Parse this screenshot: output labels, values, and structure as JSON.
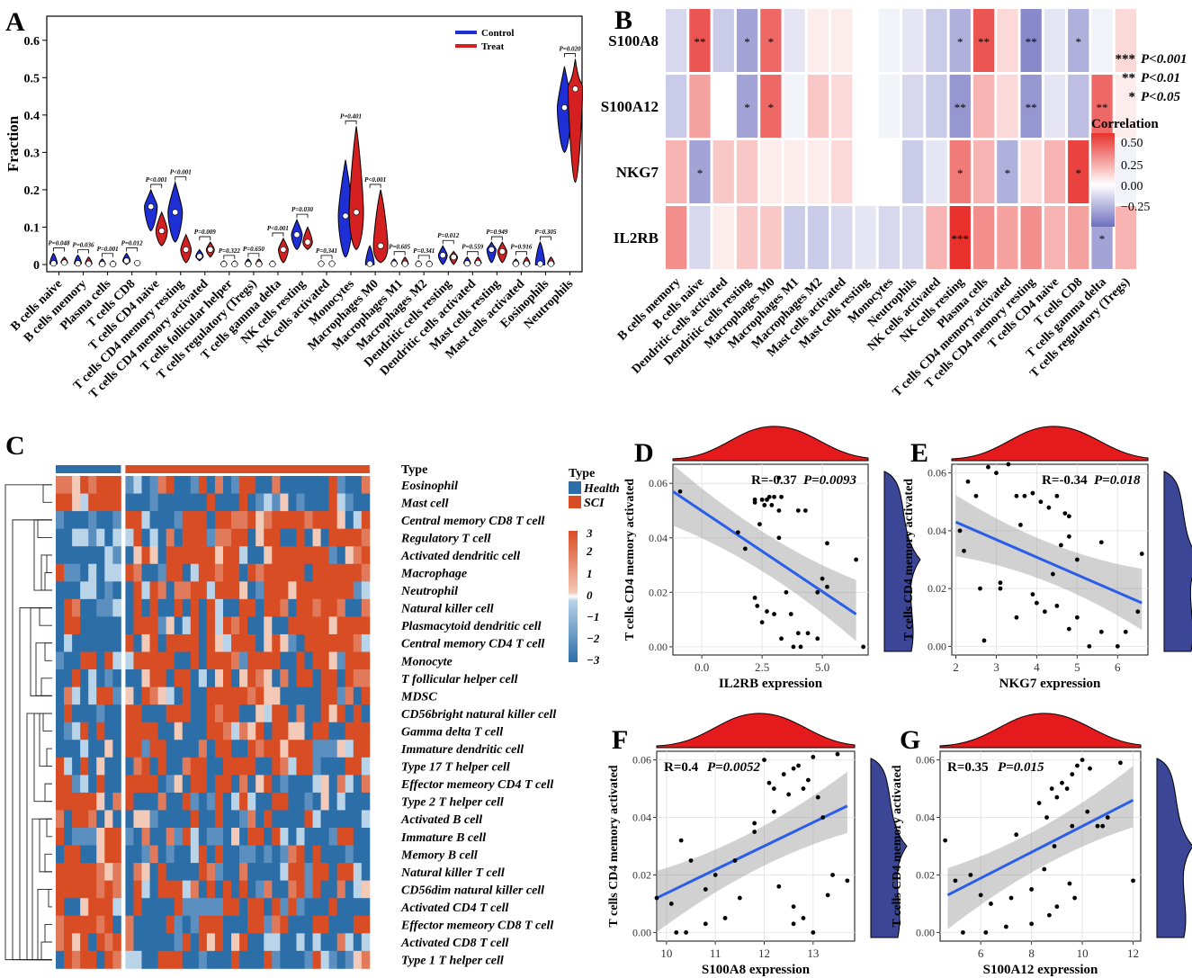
{
  "panels": {
    "A": "A",
    "B": "B",
    "C": "C",
    "D": "D",
    "E": "E",
    "F": "F",
    "G": "G"
  },
  "colors": {
    "control": "#1f2fd6",
    "treat": "#d42020",
    "heat_low": "#6e6fc0",
    "heat_high": "#e8302c",
    "type_health": "#2c6ea8",
    "type_sci": "#d94d25",
    "line": "#2a5ee8",
    "density_top": "#e41a1c",
    "density_side": "#3b4796"
  },
  "chart_data": [
    {
      "id": "A",
      "type": "violin",
      "ylabel": "Fraction",
      "ylim": [
        0,
        0.65
      ],
      "yticks": [
        0.0,
        0.1,
        0.2,
        0.3,
        0.4,
        0.5,
        0.6
      ],
      "legend": [
        "Control",
        "Treat"
      ],
      "categories": [
        "B cells naive",
        "B cells memory",
        "Plasma cells",
        "T cells CD8",
        "T cells CD4 naive",
        "T cells CD4 memory resting",
        "T cells CD4 memory activated",
        "T cells follicular helper",
        "T cells regulatory (Tregs)",
        "T cells gamma delta",
        "NK cells resting",
        "NK cells activated",
        "Monocytes",
        "Macrophages M0",
        "Macrophages M1",
        "Macrophages M2",
        "Dendritic cells resting",
        "Dendritic cells activated",
        "Mast cells resting",
        "Mast cells activated",
        "Eosinophils",
        "Neutrophils"
      ],
      "pvalues": [
        "P=0.048",
        "P=0.036",
        "P=0.001",
        "P=0.012",
        "P<0.001",
        "P<0.001",
        "P=0.009",
        "P=0.322",
        "P=0.650",
        "P<0.001",
        "P=0.030",
        "P=0.341",
        "P=0.401",
        "P<0.001",
        "P=0.605",
        "P=0.341",
        "P=0.012",
        "P=0.559",
        "P=0.949",
        "P=0.916",
        "P=0.305",
        "P=0.020"
      ],
      "control": [
        {
          "min": 0,
          "med": 0.003,
          "max": 0.03
        },
        {
          "min": 0,
          "med": 0.003,
          "max": 0.025
        },
        {
          "min": 0,
          "med": 0.001,
          "max": 0.015
        },
        {
          "min": 0,
          "med": 0.01,
          "max": 0.03
        },
        {
          "min": 0.09,
          "med": 0.155,
          "max": 0.2
        },
        {
          "min": 0.06,
          "med": 0.14,
          "max": 0.22
        },
        {
          "min": 0.01,
          "med": 0.022,
          "max": 0.04
        },
        {
          "min": 0,
          "med": 0.001,
          "max": 0.01
        },
        {
          "min": 0,
          "med": 0.001,
          "max": 0.015
        },
        {
          "min": 0,
          "med": 0.001,
          "max": 0.01
        },
        {
          "min": 0.04,
          "med": 0.08,
          "max": 0.12
        },
        {
          "min": 0,
          "med": 0.002,
          "max": 0.01
        },
        {
          "min": 0.02,
          "med": 0.13,
          "max": 0.28
        },
        {
          "min": 0,
          "med": 0.002,
          "max": 0.05
        },
        {
          "min": 0,
          "med": 0.002,
          "max": 0.015
        },
        {
          "min": 0,
          "med": 0.001,
          "max": 0.01
        },
        {
          "min": 0,
          "med": 0.025,
          "max": 0.05
        },
        {
          "min": 0,
          "med": 0.003,
          "max": 0.02
        },
        {
          "min": 0.005,
          "med": 0.04,
          "max": 0.06
        },
        {
          "min": 0,
          "med": 0.002,
          "max": 0.015
        },
        {
          "min": 0,
          "med": 0.002,
          "max": 0.06
        },
        {
          "min": 0.3,
          "med": 0.42,
          "max": 0.53
        }
      ],
      "treat": [
        {
          "min": 0,
          "med": 0.005,
          "max": 0.02
        },
        {
          "min": 0,
          "med": 0.002,
          "max": 0.02
        },
        {
          "min": 0,
          "med": 0.001,
          "max": 0.01
        },
        {
          "min": 0,
          "med": 0.004,
          "max": 0.01
        },
        {
          "min": 0.05,
          "med": 0.09,
          "max": 0.14
        },
        {
          "min": 0.005,
          "med": 0.04,
          "max": 0.08
        },
        {
          "min": 0.02,
          "med": 0.04,
          "max": 0.06
        },
        {
          "min": 0,
          "med": 0.001,
          "max": 0.01
        },
        {
          "min": 0,
          "med": 0.001,
          "max": 0.015
        },
        {
          "min": 0.005,
          "med": 0.04,
          "max": 0.07
        },
        {
          "min": 0.04,
          "med": 0.06,
          "max": 0.1
        },
        {
          "min": 0,
          "med": 0.002,
          "max": 0.01
        },
        {
          "min": 0.04,
          "med": 0.14,
          "max": 0.37
        },
        {
          "min": 0.005,
          "med": 0.05,
          "max": 0.2
        },
        {
          "min": 0,
          "med": 0.002,
          "max": 0.02
        },
        {
          "min": 0,
          "med": 0.001,
          "max": 0.01
        },
        {
          "min": 0,
          "med": 0.02,
          "max": 0.035
        },
        {
          "min": 0,
          "med": 0.004,
          "max": 0.02
        },
        {
          "min": 0.005,
          "med": 0.035,
          "max": 0.06
        },
        {
          "min": 0,
          "med": 0.002,
          "max": 0.02
        },
        {
          "min": 0,
          "med": 0.002,
          "max": 0.02
        },
        {
          "min": 0.22,
          "med": 0.47,
          "max": 0.55
        }
      ]
    },
    {
      "id": "B",
      "type": "heatmap",
      "rows": [
        "S100A8",
        "S100A12",
        "NKG7",
        "IL2RB"
      ],
      "columns": [
        "B cells memory",
        "B cells naive",
        "Dendritic cells activated",
        "Dendritic cells resting",
        "Macrophages M0",
        "Macrophages M1",
        "Macrophages M2",
        "Mast cells activated",
        "Mast cells resting",
        "Monocytes",
        "Neutrophils",
        "NK cells activated",
        "NK cells resting",
        "Plasma cells",
        "T cells CD4 memory activated",
        "T cells CD4 memory resting",
        "T cells CD4 naive",
        "T cells CD8",
        "T cells gamma delta",
        "T cells regulatory (Tregs)"
      ],
      "values": [
        [
          -0.15,
          0.45,
          -0.2,
          -0.35,
          0.4,
          -0.1,
          0.05,
          0.05,
          0,
          -0.05,
          -0.1,
          -0.2,
          -0.3,
          0.45,
          0.1,
          -0.45,
          -0.1,
          -0.3,
          -0.05,
          0.1
        ],
        [
          -0.2,
          0.25,
          0,
          -0.35,
          0.4,
          -0.05,
          0.15,
          0.1,
          0,
          -0.05,
          -0.15,
          -0.2,
          -0.4,
          0.2,
          0.1,
          -0.4,
          -0.1,
          -0.25,
          0.4,
          0.05
        ],
        [
          0.2,
          -0.35,
          0.15,
          0.15,
          0.05,
          0.05,
          0.05,
          0.1,
          0,
          0,
          -0.2,
          -0.1,
          0.35,
          0.2,
          -0.3,
          0.1,
          0.2,
          0.5,
          0.1,
          -0.05
        ],
        [
          0.3,
          -0.15,
          0.05,
          0.15,
          0.15,
          -0.2,
          -0.2,
          -0.15,
          -0.1,
          -0.15,
          -0.15,
          0.2,
          0.6,
          0.3,
          0.25,
          0.3,
          0.2,
          0.25,
          -0.35,
          0.2
        ]
      ],
      "stars": [
        [
          "",
          "**",
          "",
          "*",
          "*",
          "",
          "",
          "",
          "",
          "",
          "",
          "",
          "*",
          "**",
          "",
          "**",
          "",
          "*",
          "",
          ""
        ],
        [
          "",
          "",
          "",
          "*",
          "*",
          "",
          "",
          "",
          "",
          "",
          "",
          "",
          "**",
          "",
          "",
          "**",
          "",
          "",
          "**",
          ""
        ],
        [
          "",
          "*",
          "",
          "",
          "",
          "",
          "",
          "",
          "",
          "",
          "",
          "",
          "*",
          "",
          "*",
          "",
          "",
          "*",
          "",
          ""
        ],
        [
          "",
          "",
          "",
          "",
          "",
          "",
          "",
          "",
          "",
          "",
          "",
          "",
          "***",
          "",
          "",
          "",
          "",
          "",
          "*",
          ""
        ]
      ],
      "legend_title": "Correlation",
      "legend_ticks": [
        "0.50",
        "0.25",
        "0.00",
        "−0.25"
      ],
      "sig_key": [
        {
          "stars": "***",
          "text": "P<0.001"
        },
        {
          "stars": "**",
          "text": "P<0.01"
        },
        {
          "stars": "*",
          "text": "P<0.05"
        }
      ]
    },
    {
      "id": "C",
      "type": "heatmap",
      "type_header": "Type",
      "legend_groups": [
        "Health",
        "SCI"
      ],
      "health_samples": 8,
      "sci_samples": 30,
      "scale_ticks": [
        "3",
        "2",
        "1",
        "0",
        "−1",
        "−2",
        "−3"
      ],
      "rows": [
        "Eosinophil",
        "Mast cell",
        "Central memory CD8 T cell",
        "Regulatory T cell",
        "Activated dendritic cell",
        "Macrophage",
        "Neutrophil",
        "Natural killer cell",
        "Plasmacytoid dendritic cell",
        "Central memory CD4 T cell",
        "Monocyte",
        "T follicular helper cell",
        "MDSC",
        "CD56bright natural killer cell",
        "Gamma delta T cell",
        "Immature dendritic cell",
        "Type 17 T helper cell",
        "Effector memeory CD4 T cell",
        "Type 2 T helper cell",
        "Activated B cell",
        "Immature  B cell",
        "Memory B cell",
        "Natural killer T cell",
        "CD56dim natural killer cell",
        "Activated CD4 T cell",
        "Effector memeory CD8 T cell",
        "Activated CD8 T cell",
        "Type 1 T helper cell"
      ]
    },
    {
      "id": "D",
      "type": "scatter",
      "xlabel": "IL2RB expression",
      "ylabel": "T cells CD4 memory activated",
      "stat": "R=-0.37",
      "pval": "P=0.0093",
      "xlim": [
        -1.2,
        6.9
      ],
      "ylim": [
        -0.003,
        0.067
      ],
      "xticks": [
        0.0,
        2.5,
        5.0
      ],
      "xtick_labels": [
        "0.0",
        "2.5",
        "5.0"
      ],
      "yticks": [
        0,
        0.02,
        0.04,
        0.06
      ],
      "ytick_labels": [
        "0.00",
        "0.02",
        "0.04",
        "0.06"
      ],
      "x": [
        -0.9,
        1.5,
        1.8,
        2.2,
        2.2,
        2.5,
        2.6,
        2.7,
        2.8,
        2.9,
        3.0,
        3.2,
        3.3,
        4.0,
        4.3,
        3.2,
        3.5,
        5.0,
        5.2,
        4.8,
        3.0,
        2.7,
        2.2,
        2.3,
        2.5,
        3.7,
        4.0,
        4.4,
        4.8,
        3.3,
        3.8,
        4.1,
        6.4,
        6.7,
        2.4,
        3.2,
        5.2
      ],
      "y": [
        0.057,
        0.042,
        0.036,
        0.054,
        0.053,
        0.054,
        0.052,
        0.054,
        0.055,
        0.052,
        0.055,
        0.05,
        0.055,
        0.05,
        0.05,
        0.04,
        0.02,
        0.025,
        0.022,
        0.02,
        0.012,
        0.013,
        0.018,
        0.015,
        0.009,
        0.012,
        0.005,
        0.005,
        0.003,
        0.003,
        0,
        0,
        0.032,
        0,
        0.045,
        0.062,
        0.038
      ],
      "fit": [
        [
          -1.2,
          0.057
        ],
        [
          6.4,
          0.012
        ]
      ]
    },
    {
      "id": "E",
      "type": "scatter",
      "xlabel": "NKG7 expression",
      "ylabel": "T cells CD4 memory activated",
      "stat": "R=-0.34",
      "pval": "P=0.018",
      "xlim": [
        1.9,
        6.75
      ],
      "ylim": [
        -0.003,
        0.063
      ],
      "xticks": [
        2,
        3,
        4,
        5,
        6
      ],
      "xtick_labels": [
        "2",
        "3",
        "4",
        "5",
        "6"
      ],
      "yticks": [
        0,
        0.02,
        0.04,
        0.06
      ],
      "ytick_labels": [
        "0.00",
        "0.02",
        "0.04",
        "0.06"
      ],
      "x": [
        2.1,
        2.3,
        2.5,
        2.8,
        3.0,
        3.3,
        3.5,
        3.7,
        3.9,
        4.1,
        4.3,
        4.5,
        4.7,
        4.8,
        5.0,
        2.2,
        2.6,
        3.1,
        3.9,
        4.0,
        4.2,
        4.5,
        4.8,
        5.0,
        5.3,
        5.6,
        6.0,
        6.2,
        6.5,
        6.6,
        2.7,
        3.5,
        4.4,
        4.6,
        5.6,
        3.6,
        4.8,
        3.1
      ],
      "y": [
        0.04,
        0.057,
        0.052,
        0.062,
        0.06,
        0.063,
        0.052,
        0.052,
        0.053,
        0.05,
        0.048,
        0.052,
        0.046,
        0.038,
        0.03,
        0.033,
        0.02,
        0.022,
        0.018,
        0.015,
        0.012,
        0.014,
        0.006,
        0.01,
        0,
        0.005,
        0,
        0.005,
        0.012,
        0.032,
        0.002,
        0.01,
        0.025,
        0.035,
        0.036,
        0.042,
        0.045,
        0.02
      ],
      "fit": [
        [
          2.0,
          0.043
        ],
        [
          6.6,
          0.015
        ]
      ]
    },
    {
      "id": "F",
      "type": "scatter",
      "xlabel": "S100A8 expression",
      "ylabel": "T cells CD4 memory activated",
      "stat": "R=0.4",
      "pval": "P=0.0052",
      "xlim": [
        9.8,
        13.85
      ],
      "ylim": [
        -0.003,
        0.063
      ],
      "xticks": [
        10,
        11,
        12,
        13
      ],
      "xtick_labels": [
        "10",
        "11",
        "12",
        "13"
      ],
      "yticks": [
        0,
        0.02,
        0.04,
        0.06
      ],
      "ytick_labels": [
        "0.00",
        "0.02",
        "0.04",
        "0.06"
      ],
      "x": [
        9.8,
        10.1,
        10.3,
        10.5,
        10.8,
        11.0,
        11.2,
        11.5,
        11.8,
        12.0,
        12.1,
        12.2,
        12.4,
        12.5,
        12.6,
        12.7,
        12.8,
        12.9,
        13.0,
        13.1,
        13.2,
        13.5,
        13.7,
        10.4,
        11.4,
        12.3,
        12.6,
        12.8,
        13.3,
        10.2,
        10.8,
        11.8,
        12.2,
        12.6,
        13.0,
        13.4
      ],
      "y": [
        0.012,
        0.01,
        0.032,
        0.025,
        0.015,
        0.02,
        0.005,
        0.012,
        0.035,
        0.06,
        0.052,
        0.05,
        0.055,
        0.048,
        0.057,
        0.058,
        0.05,
        0.053,
        0.061,
        0.047,
        0.04,
        0.062,
        0.018,
        0.0,
        0.025,
        0.016,
        0.009,
        0.005,
        0.013,
        0.0,
        0.003,
        0.038,
        0.042,
        0.003,
        0.0,
        0.02
      ],
      "fit": [
        [
          9.8,
          0.012
        ],
        [
          13.7,
          0.044
        ]
      ]
    },
    {
      "id": "G",
      "type": "scatter",
      "xlabel": "S100A12 expression",
      "ylabel": "T cells CD4 memory activated",
      "stat": "R=0.35",
      "pval": "P=0.015",
      "xlim": [
        4.4,
        12.3
      ],
      "ylim": [
        -0.003,
        0.063
      ],
      "xticks": [
        6,
        8,
        10,
        12
      ],
      "xtick_labels": [
        "6",
        "8",
        "10",
        "12"
      ],
      "yticks": [
        0,
        0.02,
        0.04,
        0.06
      ],
      "ytick_labels": [
        "0.00",
        "0.02",
        "0.04",
        "0.06"
      ],
      "x": [
        4.6,
        5.0,
        5.6,
        6.0,
        6.4,
        7.0,
        7.4,
        8.0,
        8.3,
        8.6,
        8.8,
        9.0,
        9.2,
        9.4,
        9.6,
        9.8,
        10.0,
        10.3,
        10.6,
        11.0,
        11.5,
        12.0,
        5.3,
        6.2,
        7.2,
        8.0,
        8.5,
        9.0,
        9.5,
        9.6,
        10.2,
        10.8,
        8.9,
        9.7,
        8.7
      ],
      "y": [
        0.032,
        0.018,
        0.02,
        0.013,
        0.01,
        0.002,
        0.034,
        0.015,
        0.045,
        0.04,
        0.05,
        0.047,
        0.052,
        0.05,
        0.055,
        0.058,
        0.06,
        0.057,
        0.037,
        0.04,
        0.059,
        0.018,
        0.0,
        0.0,
        0.012,
        0.003,
        0.022,
        0.009,
        0.017,
        0.037,
        0.042,
        0.037,
        0.03,
        0.012,
        0.006
      ],
      "fit": [
        [
          4.7,
          0.013
        ],
        [
          12.0,
          0.046
        ]
      ]
    }
  ]
}
